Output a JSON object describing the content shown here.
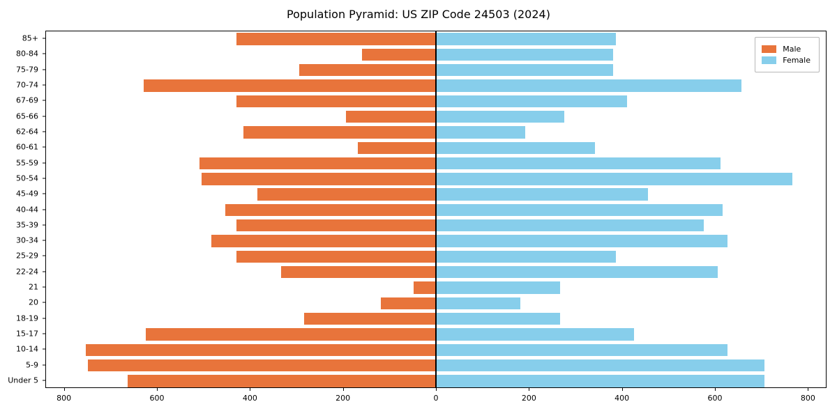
{
  "chart_data": {
    "type": "bar",
    "variant": "population-pyramid",
    "title": "Population Pyramid: US ZIP Code 24503 (2024)",
    "categories": [
      "85+",
      "80-84",
      "75-79",
      "70-74",
      "67-69",
      "65-66",
      "62-64",
      "60-61",
      "55-59",
      "50-54",
      "45-49",
      "40-44",
      "35-39",
      "30-34",
      "25-29",
      "22-24",
      "21",
      "20",
      "18-19",
      "15-17",
      "10-14",
      "5-9",
      "Under 5"
    ],
    "series": [
      {
        "name": "Male",
        "color": "#E8743B",
        "values": [
          430,
          160,
          295,
          630,
          430,
          195,
          415,
          170,
          510,
          505,
          385,
          455,
          430,
          485,
          430,
          335,
          50,
          120,
          285,
          625,
          755,
          750,
          665
        ]
      },
      {
        "name": "Female",
        "color": "#87CEEB",
        "values": [
          385,
          380,
          380,
          655,
          410,
          275,
          190,
          340,
          610,
          765,
          455,
          615,
          575,
          625,
          385,
          605,
          265,
          180,
          265,
          425,
          625,
          705,
          705
        ]
      }
    ],
    "xlim": [
      -840,
      840
    ],
    "x_tick_values": [
      -800,
      -600,
      -400,
      -200,
      0,
      200,
      400,
      600,
      800
    ],
    "x_tick_labels": [
      "800",
      "600",
      "400",
      "200",
      "0",
      "200",
      "400",
      "600",
      "800"
    ],
    "legend_position": "upper right",
    "grid": false,
    "axis_color": "#000000",
    "background_color": "#ffffff"
  }
}
